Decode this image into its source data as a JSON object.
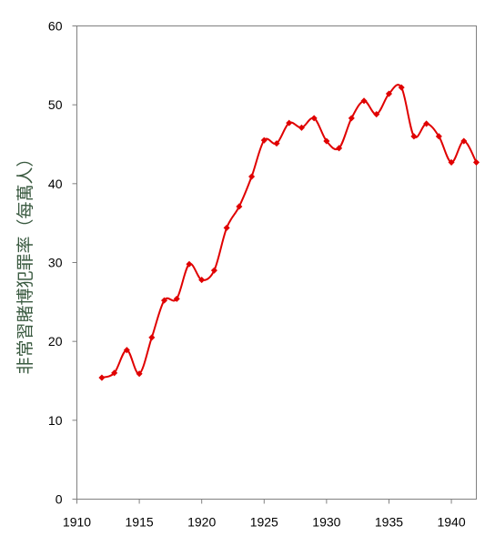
{
  "chart_data": {
    "type": "line",
    "title": "",
    "xlabel": "",
    "ylabel": "非常習賭博犯罪率（每萬人）",
    "xlim": [
      1910,
      1942
    ],
    "ylim": [
      0,
      60
    ],
    "x_ticks": [
      1910,
      1915,
      1920,
      1925,
      1930,
      1935,
      1940
    ],
    "y_ticks": [
      0,
      10,
      20,
      30,
      40,
      50,
      60
    ],
    "grid": false,
    "legend": "none",
    "series": [
      {
        "color": "#e00000",
        "smooth": true,
        "x": [
          1912,
          1913,
          1914,
          1915,
          1916,
          1917,
          1918,
          1919,
          1920,
          1921,
          1922,
          1923,
          1924,
          1925,
          1926,
          1927,
          1928,
          1929,
          1930,
          1931,
          1932,
          1933,
          1934,
          1935,
          1936,
          1937,
          1938,
          1939,
          1940,
          1941,
          1942
        ],
        "values": [
          15.4,
          16.0,
          18.9,
          15.9,
          20.5,
          25.2,
          25.4,
          29.8,
          27.8,
          29.0,
          34.4,
          37.1,
          40.9,
          45.5,
          45.1,
          47.7,
          47.1,
          48.3,
          45.4,
          44.5,
          48.3,
          50.5,
          48.8,
          51.4,
          52.2,
          46.0,
          47.6,
          46.0,
          42.7,
          45.4,
          42.7
        ]
      }
    ]
  }
}
